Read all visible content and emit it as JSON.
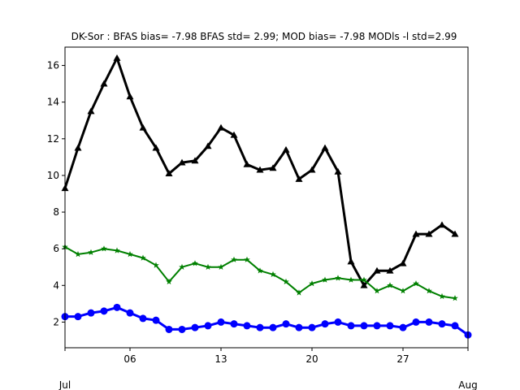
{
  "chart_data": {
    "type": "line",
    "title": "DK-Sor   : BFAS bias= -7.98 BFAS std= 2.99; MOD bias= -7.98 MODls -l std=2.99",
    "xlabel": "",
    "ylabel": "",
    "x": [
      "2023-07-01",
      "2023-07-02",
      "2023-07-03",
      "2023-07-04",
      "2023-07-05",
      "2023-07-06",
      "2023-07-07",
      "2023-07-08",
      "2023-07-09",
      "2023-07-10",
      "2023-07-11",
      "2023-07-12",
      "2023-07-13",
      "2023-07-14",
      "2023-07-15",
      "2023-07-16",
      "2023-07-17",
      "2023-07-18",
      "2023-07-19",
      "2023-07-20",
      "2023-07-21",
      "2023-07-22",
      "2023-07-23",
      "2023-07-24",
      "2023-07-25",
      "2023-07-26",
      "2023-07-27",
      "2023-07-28",
      "2023-07-29",
      "2023-07-30",
      "2023-07-31",
      "2023-08-01"
    ],
    "xlim": [
      "2023-07-01",
      "2023-08-01"
    ],
    "ylim": [
      0.6,
      17.0
    ],
    "x_ticks": [
      {
        "date": "2023-07-01",
        "label": "Jul",
        "secondary": true
      },
      {
        "date": "2023-07-06",
        "label": "06"
      },
      {
        "date": "2023-07-13",
        "label": "13"
      },
      {
        "date": "2023-07-20",
        "label": "20"
      },
      {
        "date": "2023-07-27",
        "label": "27"
      },
      {
        "date": "2023-08-01",
        "label": "Aug",
        "secondary": true
      }
    ],
    "y_ticks": [
      2,
      4,
      6,
      8,
      10,
      12,
      14,
      16
    ],
    "grid": false,
    "series": [
      {
        "color": "#000000",
        "marker": "triangle",
        "linewidth": 3,
        "values": [
          9.3,
          11.5,
          13.5,
          15.0,
          16.4,
          14.3,
          12.6,
          11.5,
          10.1,
          10.7,
          10.8,
          11.6,
          12.6,
          12.2,
          10.6,
          10.3,
          10.4,
          11.4,
          9.8,
          10.3,
          11.5,
          10.2,
          5.3,
          4.0,
          4.8,
          4.8,
          5.2,
          6.8,
          6.8,
          7.3,
          6.8,
          null
        ]
      },
      {
        "color": "#008000",
        "marker": "star",
        "linewidth": 2,
        "values": [
          6.1,
          5.7,
          5.8,
          6.0,
          5.9,
          5.7,
          5.5,
          5.1,
          4.2,
          5.0,
          5.2,
          5.0,
          5.0,
          5.4,
          5.4,
          4.8,
          4.6,
          4.2,
          3.6,
          4.1,
          4.3,
          4.4,
          4.3,
          4.3,
          3.7,
          4.0,
          3.7,
          4.1,
          3.7,
          3.4,
          3.3,
          null
        ]
      },
      {
        "color": "#0000ff",
        "marker": "circle",
        "linewidth": 3,
        "values": [
          2.3,
          2.3,
          2.5,
          2.6,
          2.8,
          2.5,
          2.2,
          2.1,
          1.6,
          1.6,
          1.7,
          1.8,
          2.0,
          1.9,
          1.8,
          1.7,
          1.7,
          1.9,
          1.7,
          1.7,
          1.9,
          2.0,
          1.8,
          1.8,
          1.8,
          1.8,
          1.7,
          2.0,
          2.0,
          1.9,
          1.8,
          1.3
        ]
      }
    ]
  }
}
